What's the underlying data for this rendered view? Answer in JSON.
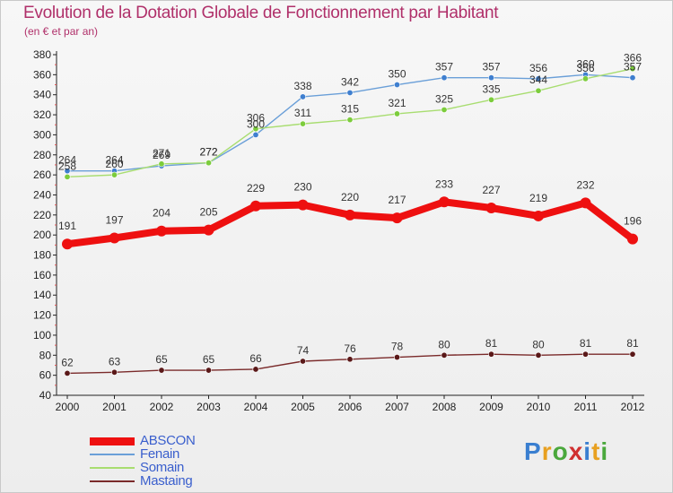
{
  "title": "Evolution de la Dotation Globale de Fonctionnement par Habitant",
  "subtitle": "(en € et par an)",
  "brand": {
    "text": "Proxiti",
    "letter_colors": [
      "#3a7fd0",
      "#e8a020",
      "#4aa83c",
      "#d03030",
      "#3a7fd0",
      "#e8a020",
      "#4aa83c"
    ]
  },
  "chart_data": {
    "type": "line",
    "x": [
      "2000",
      "2001",
      "2002",
      "2003",
      "2004",
      "2005",
      "2006",
      "2007",
      "2008",
      "2009",
      "2010",
      "2011",
      "2012"
    ],
    "ylim": [
      40,
      380
    ],
    "yticks": [
      40,
      60,
      80,
      100,
      120,
      140,
      160,
      180,
      200,
      220,
      240,
      260,
      280,
      300,
      320,
      340,
      360,
      380
    ],
    "grid": false,
    "legend_position": "bottom-left",
    "series": [
      {
        "name": "ABSCON",
        "color": "#ee1010",
        "width": "thick",
        "values": [
          191,
          197,
          204,
          205,
          229,
          230,
          220,
          217,
          233,
          227,
          219,
          232,
          196
        ]
      },
      {
        "name": "Fenain",
        "color": "#6a9fd8",
        "width": "thin",
        "marker": "#3f7fcf",
        "values": [
          264,
          264,
          269,
          272,
          300,
          338,
          342,
          350,
          357,
          357,
          356,
          360,
          357
        ]
      },
      {
        "name": "Somain",
        "color": "#a8dd70",
        "width": "thin",
        "marker": "#7ccc3c",
        "values": [
          258,
          260,
          271,
          272,
          306,
          311,
          315,
          321,
          325,
          335,
          344,
          356,
          366
        ]
      },
      {
        "name": "Mastaing",
        "color": "#7a2a2a",
        "width": "thin",
        "marker": "#5a1818",
        "values": [
          62,
          63,
          65,
          65,
          66,
          74,
          76,
          78,
          80,
          81,
          80,
          81,
          81
        ]
      }
    ]
  }
}
